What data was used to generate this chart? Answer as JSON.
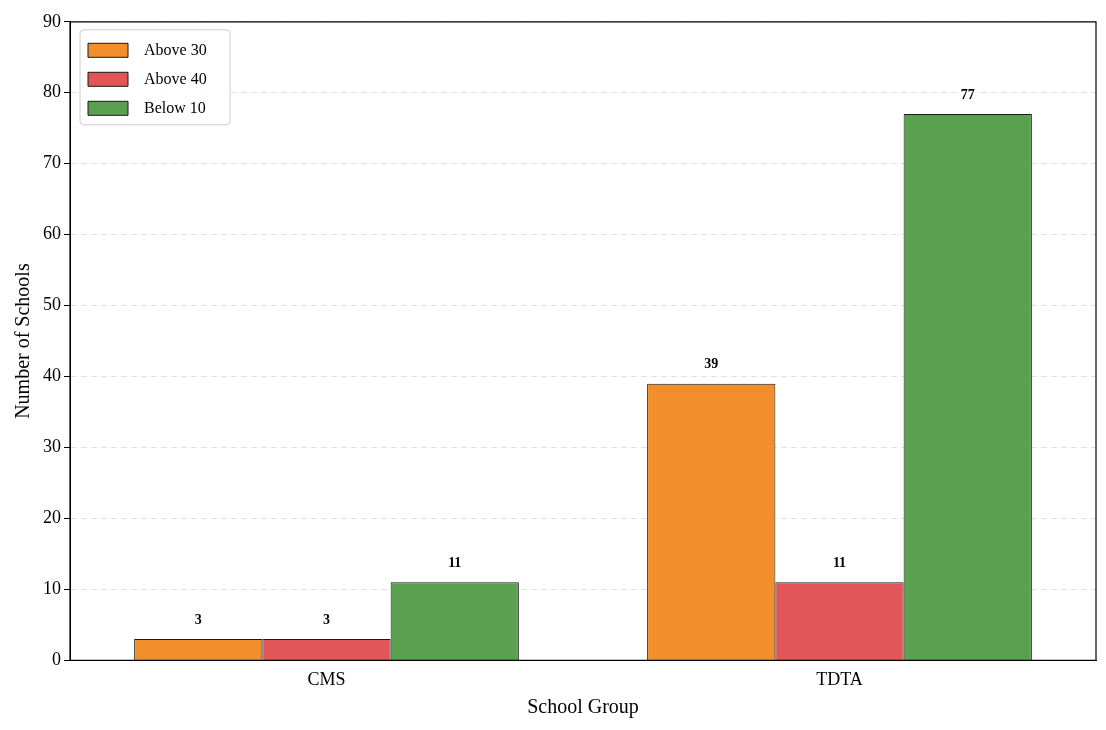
{
  "chart_data": {
    "type": "bar",
    "xlabel": "School Group",
    "ylabel": "Number of Schools",
    "categories": [
      "CMS",
      "TDTA"
    ],
    "series": [
      {
        "name": "Above 30",
        "color": "#f28e2b",
        "values": [
          3,
          39
        ]
      },
      {
        "name": "Above 40",
        "color": "#e15759",
        "values": [
          3,
          11
        ]
      },
      {
        "name": "Below 10",
        "color": "#59a14f",
        "values": [
          11,
          77
        ]
      }
    ],
    "ylim": [
      0,
      90
    ],
    "yticks": [
      0,
      10,
      20,
      30,
      40,
      50,
      60,
      70,
      80,
      90
    ],
    "grid": "y",
    "legend": "top left",
    "data_labels": true
  }
}
